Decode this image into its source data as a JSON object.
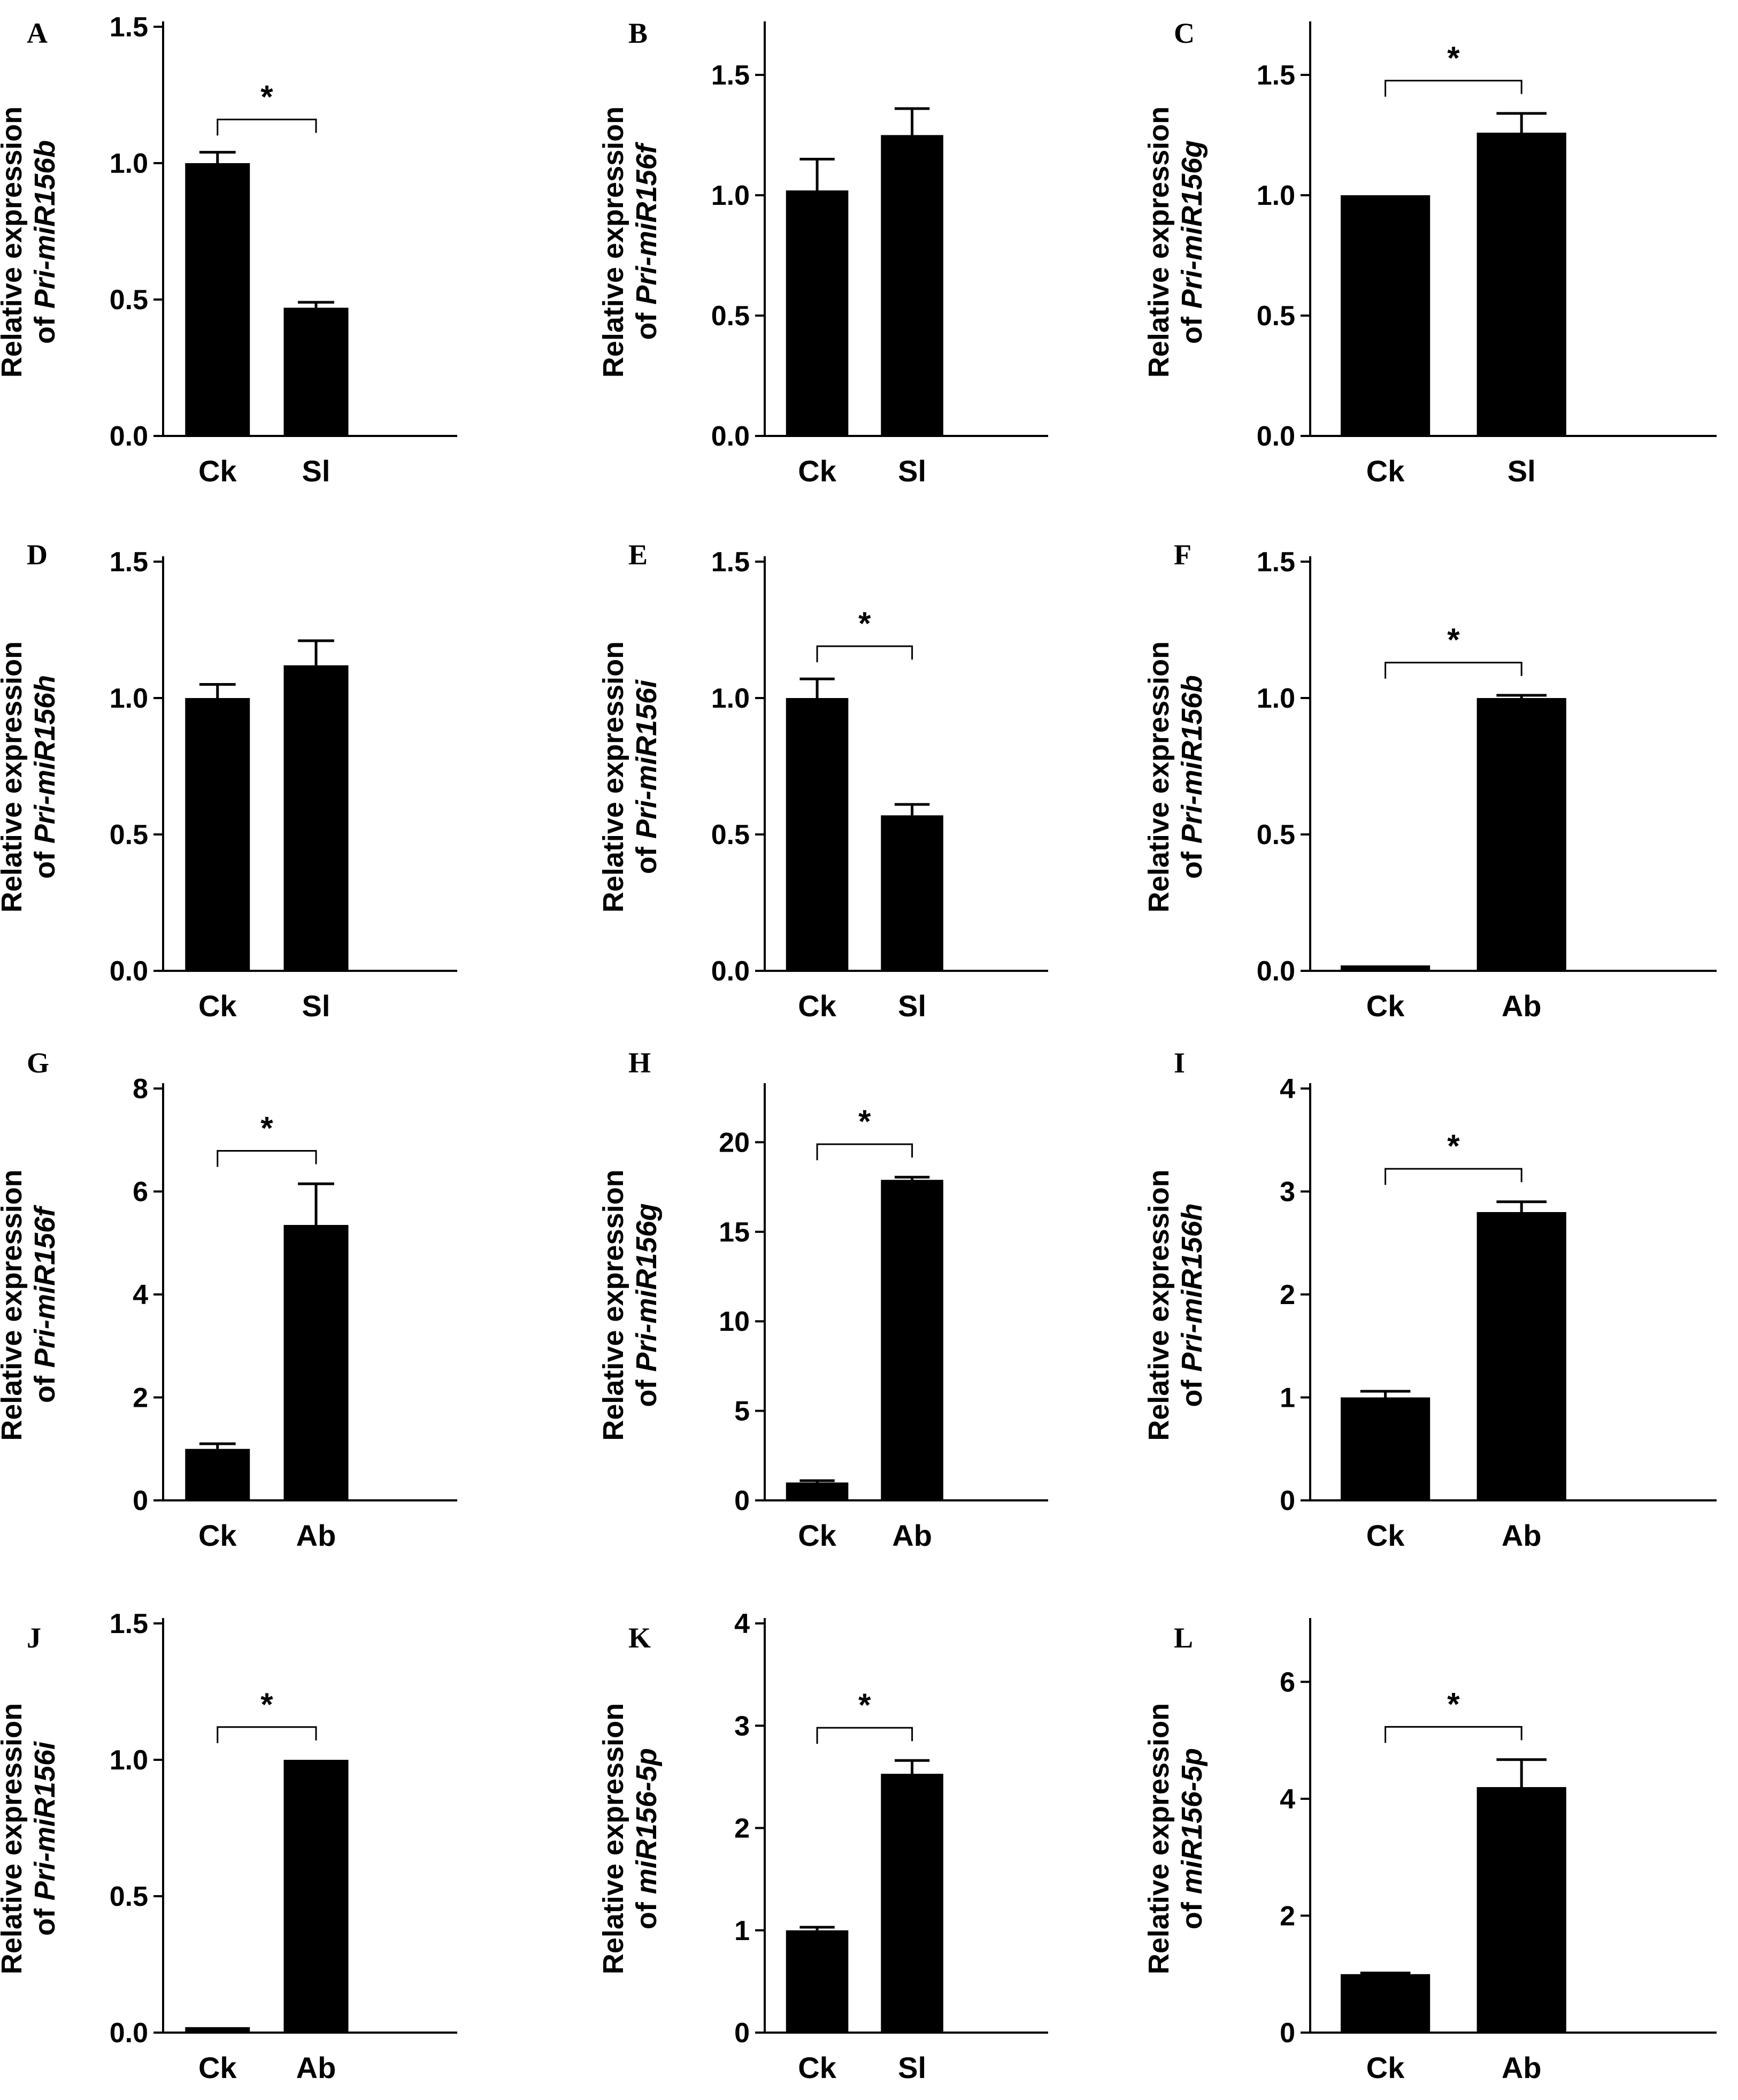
{
  "chart_data": [
    {
      "panel": "A",
      "type": "bar",
      "ylabel_prefix": "of ",
      "ylabel_italic": "Pri-miR156b",
      "ylabel_line1": "Relative expression",
      "categories": [
        "Ck",
        "Sl"
      ],
      "values": [
        1.0,
        0.47
      ],
      "errors": [
        0.04,
        0.02
      ],
      "yticks": [
        "0.0",
        "0.5",
        "1.0",
        "1.5"
      ],
      "ylim": [
        0,
        1.5
      ],
      "significance": "*"
    },
    {
      "panel": "B",
      "type": "bar",
      "ylabel_prefix": "of ",
      "ylabel_italic": "Pri-miR156f",
      "ylabel_line1": "Relative expression",
      "categories": [
        "Ck",
        "Sl"
      ],
      "values": [
        1.02,
        1.25
      ],
      "errors": [
        0.13,
        0.11
      ],
      "yticks": [
        "0.0",
        "0.5",
        "1.0",
        "1.5"
      ],
      "ylim": [
        0,
        1.7
      ],
      "significance": ""
    },
    {
      "panel": "C",
      "type": "bar",
      "ylabel_prefix": "of ",
      "ylabel_italic": "Pri-miR156g",
      "ylabel_line1": "Relative expression",
      "categories": [
        "Ck",
        "Sl"
      ],
      "values": [
        1.0,
        1.26
      ],
      "errors": [
        0.0,
        0.08
      ],
      "yticks": [
        "0.0",
        "0.5",
        "1.0",
        "1.5"
      ],
      "ylim": [
        0,
        1.7
      ],
      "significance": "*"
    },
    {
      "panel": "D",
      "type": "bar",
      "ylabel_prefix": "of ",
      "ylabel_italic": "Pri-miR156h",
      "ylabel_line1": "Relative expression",
      "categories": [
        "Ck",
        "Sl"
      ],
      "values": [
        1.0,
        1.12
      ],
      "errors": [
        0.05,
        0.09
      ],
      "yticks": [
        "0.0",
        "0.5",
        "1.0",
        "1.5"
      ],
      "ylim": [
        0,
        1.5
      ],
      "significance": ""
    },
    {
      "panel": "E",
      "type": "bar",
      "ylabel_prefix": "of ",
      "ylabel_italic": "Pri-miR156i",
      "ylabel_line1": "Relative expression",
      "categories": [
        "Ck",
        "Sl"
      ],
      "values": [
        1.0,
        0.57
      ],
      "errors": [
        0.07,
        0.04
      ],
      "yticks": [
        "0.0",
        "0.5",
        "1.0",
        "1.5"
      ],
      "ylim": [
        0,
        1.5
      ],
      "significance": "*"
    },
    {
      "panel": "F",
      "type": "bar",
      "ylabel_prefix": "of ",
      "ylabel_italic": "Pri-miR156b",
      "ylabel_line1": "Relative expression",
      "categories": [
        "Ck",
        "Ab"
      ],
      "values": [
        0.02,
        1.0
      ],
      "errors": [
        0.0,
        0.01
      ],
      "yticks": [
        "0.0",
        "0.5",
        "1.0",
        "1.5"
      ],
      "ylim": [
        0,
        1.5
      ],
      "significance": "*"
    },
    {
      "panel": "G",
      "type": "bar",
      "ylabel_prefix": "of ",
      "ylabel_italic": "Pri-miR156f",
      "ylabel_line1": "Relative expression",
      "categories": [
        "Ck",
        "Ab"
      ],
      "values": [
        1.0,
        5.35
      ],
      "errors": [
        0.1,
        0.8
      ],
      "yticks": [
        "0",
        "2",
        "4",
        "6",
        "8"
      ],
      "ylim": [
        0,
        8
      ],
      "significance": "*"
    },
    {
      "panel": "H",
      "type": "bar",
      "ylabel_prefix": "of ",
      "ylabel_italic": "Pri-miR156g",
      "ylabel_line1": "Relative expression",
      "categories": [
        "Ck",
        "Ab"
      ],
      "values": [
        1.0,
        17.9
      ],
      "errors": [
        0.1,
        0.15
      ],
      "yticks": [
        "0",
        "5",
        "10",
        "15",
        "20"
      ],
      "ylim": [
        0,
        23
      ],
      "significance": "*"
    },
    {
      "panel": "I",
      "type": "bar",
      "ylabel_prefix": "of ",
      "ylabel_italic": "Pri-miR156h",
      "ylabel_line1": "Relative expression",
      "categories": [
        "Ck",
        "Ab"
      ],
      "values": [
        1.0,
        2.8
      ],
      "errors": [
        0.06,
        0.1
      ],
      "yticks": [
        "0",
        "1",
        "2",
        "3",
        "4"
      ],
      "ylim": [
        0,
        4
      ],
      "significance": "*"
    },
    {
      "panel": "J",
      "type": "bar",
      "ylabel_prefix": "of ",
      "ylabel_italic": "Pri-miR156i",
      "ylabel_line1": "Relative expression",
      "categories": [
        "Ck",
        "Ab"
      ],
      "values": [
        0.02,
        1.0
      ],
      "errors": [
        0.0,
        0.0
      ],
      "yticks": [
        "0.0",
        "0.5",
        "1.0",
        "1.5"
      ],
      "ylim": [
        0,
        1.5
      ],
      "significance": "*"
    },
    {
      "panel": "K",
      "type": "bar",
      "ylabel_prefix": "of ",
      "ylabel_italic": "miR156-5p",
      "ylabel_line1": "Relative expression",
      "categories": [
        "Ck",
        "Sl"
      ],
      "values": [
        1.0,
        2.53
      ],
      "errors": [
        0.03,
        0.13
      ],
      "yticks": [
        "0",
        "1",
        "2",
        "3",
        "4"
      ],
      "ylim": [
        0,
        4
      ],
      "significance": "*"
    },
    {
      "panel": "L",
      "type": "bar",
      "ylabel_prefix": "of ",
      "ylabel_italic": "miR156-5p",
      "ylabel_line1": "Relative expression",
      "categories": [
        "Ck",
        "Ab"
      ],
      "values": [
        1.0,
        4.2
      ],
      "errors": [
        0.02,
        0.47
      ],
      "yticks": [
        "0",
        "2",
        "4",
        "6"
      ],
      "ylim": [
        0,
        7
      ],
      "significance": "*"
    }
  ]
}
